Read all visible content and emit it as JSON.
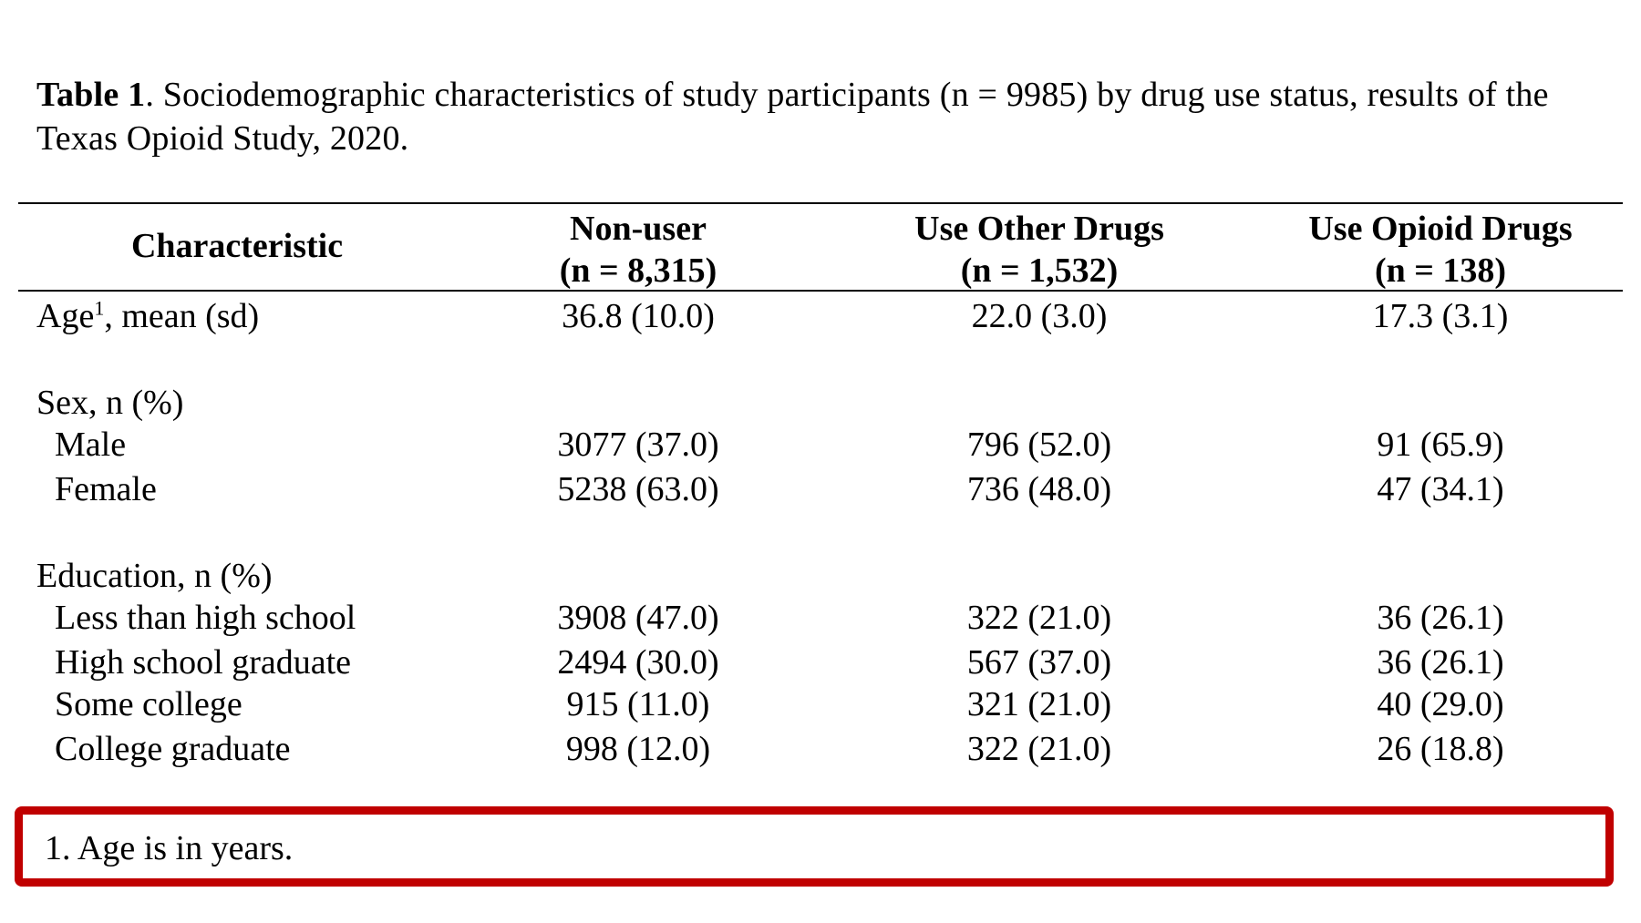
{
  "caption": {
    "label": "Table 1",
    "text": ". Sociodemographic characteristics of study participants (n = 9985) by drug use status, results of the Texas Opioid Study, 2020."
  },
  "table": {
    "header": {
      "characteristic": "Characteristic",
      "columns": [
        {
          "name": "Non-user",
          "n": "(n = 8,315)"
        },
        {
          "name": "Use Other Drugs",
          "n": "(n = 1,532)"
        },
        {
          "name": "Use Opioid Drugs",
          "n": "(n = 138)"
        }
      ]
    },
    "age": {
      "label": "Age",
      "sup": "1",
      "label_rest": ", mean (sd)",
      "values": [
        "36.8 (10.0)",
        "22.0 (3.0)",
        "17.3 (3.1)"
      ]
    },
    "sex": {
      "heading": "Sex, n (%)",
      "rows": [
        {
          "label": "Male",
          "values": [
            "3077 (37.0)",
            "796 (52.0)",
            "91 (65.9)"
          ]
        },
        {
          "label": "Female",
          "values": [
            "5238 (63.0)",
            "736 (48.0)",
            "47 (34.1)"
          ]
        }
      ]
    },
    "education": {
      "heading": "Education, n (%)",
      "rows": [
        {
          "label": "Less than high school",
          "values": [
            "3908 (47.0)",
            "322 (21.0)",
            "36 (26.1)"
          ]
        },
        {
          "label": "High school graduate",
          "values": [
            "2494 (30.0)",
            "567 (37.0)",
            "36 (26.1)"
          ]
        },
        {
          "label": "Some college",
          "values": [
            "915 (11.0)",
            "321 (21.0)",
            "40 (29.0)"
          ]
        },
        {
          "label": "College graduate",
          "values": [
            "998 (12.0)",
            "322 (21.0)",
            "26 (18.8)"
          ]
        }
      ]
    }
  },
  "footnote": {
    "text": "1. Age is in years.",
    "highlight_color": "#c00000"
  }
}
